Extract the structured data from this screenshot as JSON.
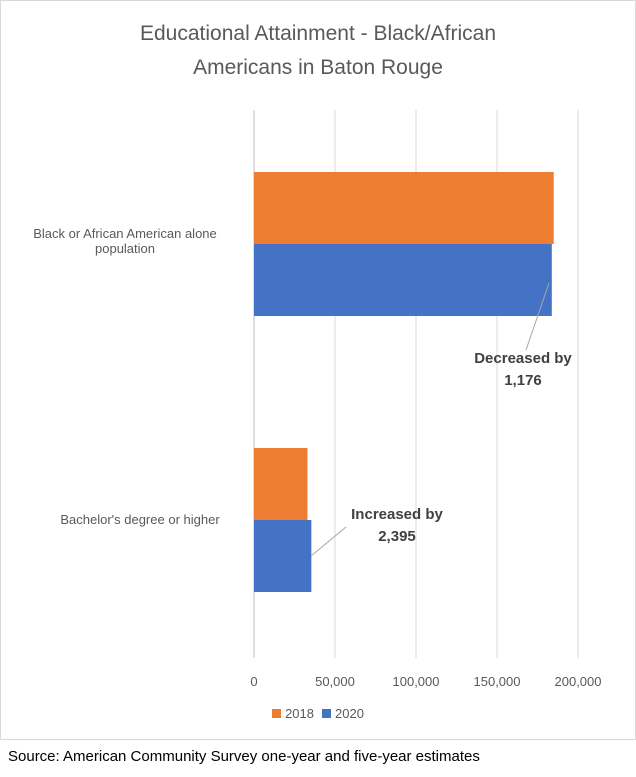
{
  "chart_data": {
    "type": "bar",
    "orientation": "horizontal",
    "title": "Educational Attainment - Black/African Americans in Baton Rouge",
    "title_lines": [
      "Educational Attainment - Black/African",
      "Americans in Baton Rouge"
    ],
    "categories": [
      "Black or African American alone population",
      "Bachelor's degree or higher"
    ],
    "category_lines": [
      [
        "Black or African American alone",
        "population"
      ],
      [
        "Bachelor's degree or higher"
      ]
    ],
    "series": [
      {
        "name": "2018",
        "color": "#ED7D31",
        "values": [
          185000,
          33000
        ]
      },
      {
        "name": "2020",
        "color": "#4472C4",
        "values": [
          183824,
          35395
        ]
      }
    ],
    "xlim": [
      0,
      200000
    ],
    "xticks": [
      0,
      50000,
      100000,
      150000,
      200000
    ],
    "xtick_labels": [
      "0",
      "50,000",
      "100,000",
      "150,000",
      "200,000"
    ],
    "grid": "vertical",
    "legend_position": "bottom",
    "annotations": [
      {
        "lines": [
          "Decreased by",
          "1,176"
        ]
      },
      {
        "lines": [
          "Increased by",
          "2,395"
        ]
      }
    ]
  },
  "source": "Source: American Community Survey one-year and five-year estimates"
}
